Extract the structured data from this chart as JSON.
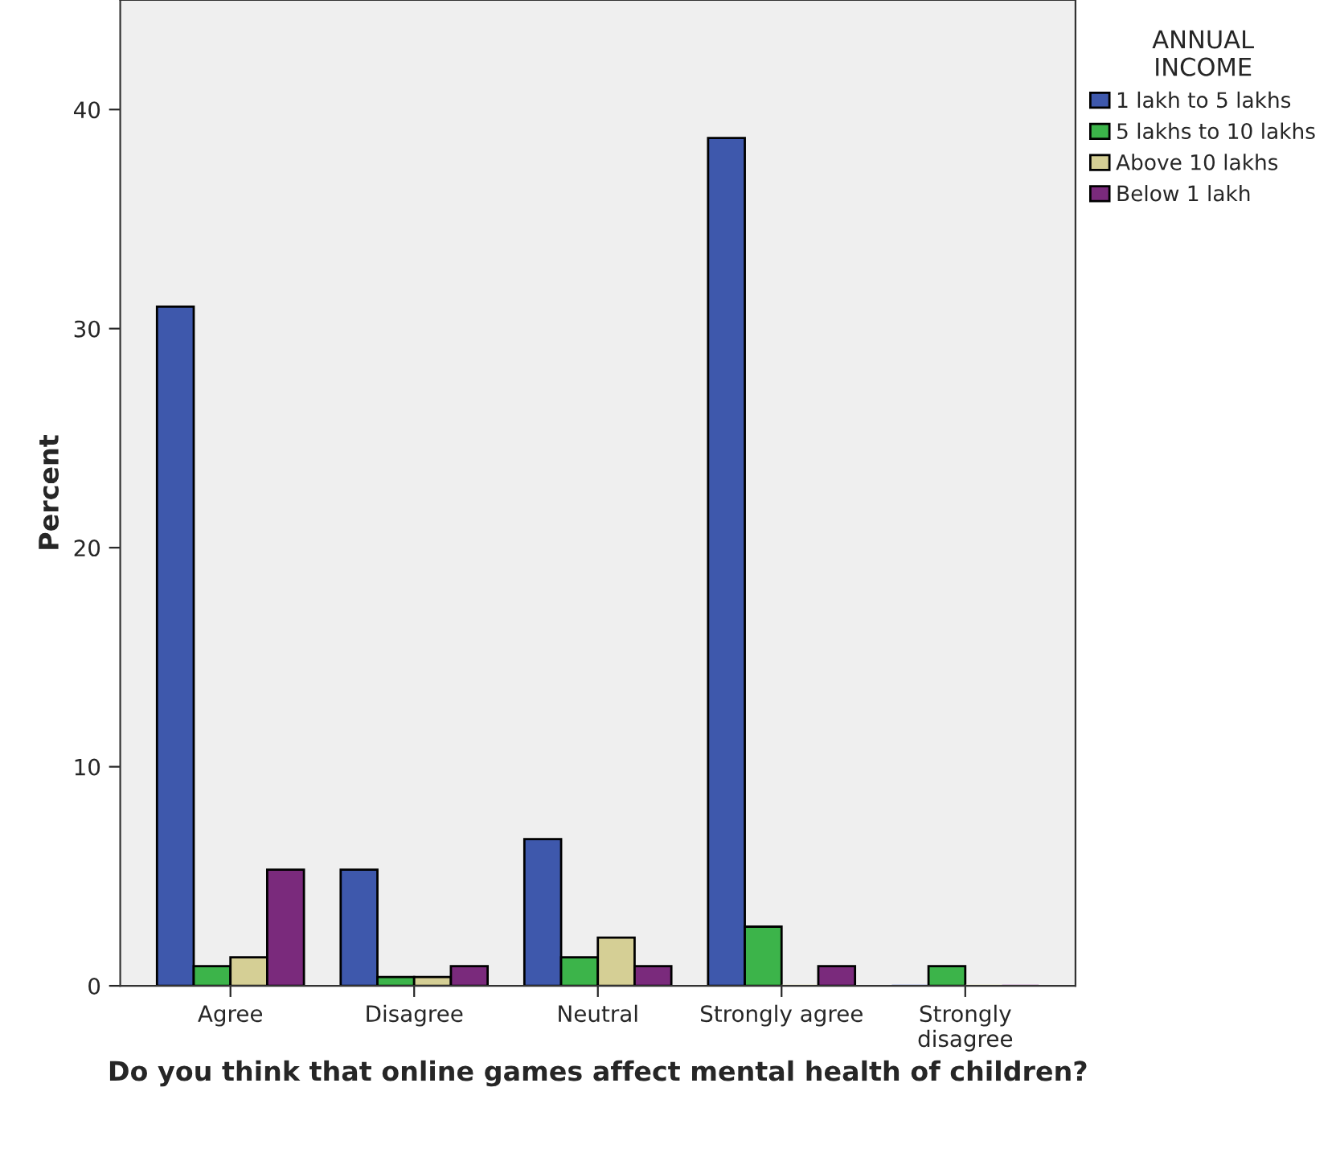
{
  "chart_data": {
    "type": "bar",
    "xlabel": "Do you think that online games affect mental health of children?",
    "ylabel": "Percent",
    "legend_title": "ANNUAL\nINCOME",
    "categories": [
      "Agree",
      "Disagree",
      "Neutral",
      "Strongly agree",
      "Strongly\ndisagree"
    ],
    "series": [
      {
        "name": "1 lakh to 5 lakhs",
        "color": "#3e58ac",
        "values": [
          31.0,
          5.3,
          6.7,
          38.7,
          0
        ]
      },
      {
        "name": "5 lakhs to 10 lakhs",
        "color": "#3cb44a",
        "values": [
          0.9,
          0.4,
          1.3,
          2.7,
          0.9
        ]
      },
      {
        "name": "Above 10 lakhs",
        "color": "#d5cf95",
        "values": [
          1.3,
          0.4,
          2.2,
          0,
          0
        ]
      },
      {
        "name": "Below 1 lakh",
        "color": "#7a2a7c",
        "values": [
          5.3,
          0.9,
          0.9,
          0.9,
          0
        ]
      }
    ],
    "ylim": [
      0,
      45
    ],
    "yticks": [
      0,
      10,
      20,
      30,
      40
    ],
    "grid": false,
    "legend": "top right"
  }
}
